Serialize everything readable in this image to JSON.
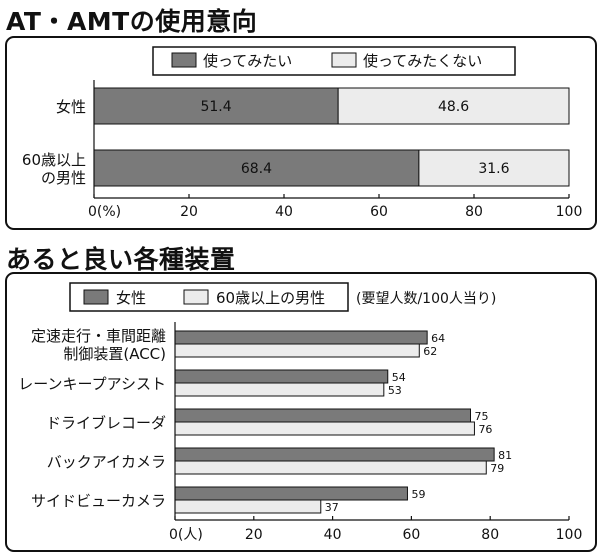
{
  "chart_data": [
    {
      "type": "bar",
      "orientation": "horizontal",
      "stacked": true,
      "title": "AT・AMTの使用意向",
      "categories": [
        [
          "女性"
        ],
        [
          "60歳以上",
          "の男性"
        ]
      ],
      "series": [
        {
          "name": "使ってみたい",
          "values": [
            51.4,
            68.4
          ],
          "labels": [
            "51.4",
            "68.4"
          ],
          "color": "#7a7a7a"
        },
        {
          "name": "使ってみたくない",
          "values": [
            48.6,
            31.6
          ],
          "labels": [
            "48.6",
            "31.6"
          ],
          "color": "#ececec"
        }
      ],
      "xlim": [
        0,
        100
      ],
      "ticks": [
        "0(%)",
        "20",
        "40",
        "60",
        "80",
        "100"
      ],
      "legend_position": "top"
    },
    {
      "type": "bar",
      "orientation": "horizontal",
      "stacked": false,
      "title": "あると良い各種装置",
      "note": "(要望人数/100人当り)",
      "categories": [
        [
          "定速走行・車間距離",
          "制御装置(ACC)"
        ],
        [
          "レーンキープアシスト"
        ],
        [
          "ドライブレコーダ"
        ],
        [
          "バックアイカメラ"
        ],
        [
          "サイドビューカメラ"
        ]
      ],
      "series": [
        {
          "name": "女性",
          "values": [
            64,
            54,
            75,
            81,
            59
          ],
          "color": "#7a7a7a"
        },
        {
          "name": "60歳以上の男性",
          "values": [
            62,
            53,
            76,
            79,
            37
          ],
          "color": "#ececec"
        }
      ],
      "xlim": [
        0,
        100
      ],
      "ticks": [
        "0(人)",
        "20",
        "40",
        "60",
        "80",
        "100"
      ],
      "legend_position": "top"
    }
  ]
}
